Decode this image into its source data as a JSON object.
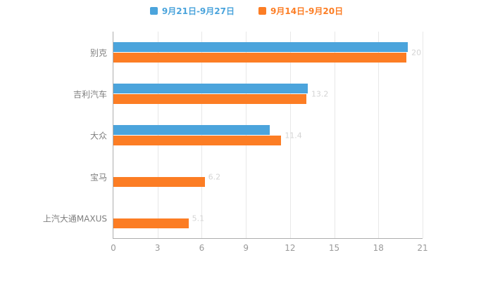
{
  "legend": {
    "items": [
      {
        "label": "9月21日-9月27日",
        "color": "#4BA4DC"
      },
      {
        "label": "9月14日-9月20日",
        "color": "#FC7D24"
      }
    ]
  },
  "chart_data": {
    "type": "bar",
    "orientation": "horizontal",
    "title": "",
    "xlabel": "",
    "ylabel": "",
    "categories": [
      "别克",
      "吉利汽车",
      "大众",
      "宝马",
      "上汽大通MAXUS"
    ],
    "series": [
      {
        "name": "9月21日-9月27日",
        "color": "#4BA4DC",
        "values": [
          20,
          13.2,
          10.6,
          0,
          0
        ]
      },
      {
        "name": "9月14日-9月20日",
        "color": "#FC7D24",
        "values": [
          19.9,
          13.1,
          11.4,
          6.2,
          5.1
        ]
      }
    ],
    "value_labels": [
      "20",
      "13.2",
      "11.4",
      "6.2",
      "5.1"
    ],
    "xlim": [
      0,
      21
    ],
    "x_ticks": [
      0,
      3,
      6,
      9,
      12,
      15,
      18,
      21
    ],
    "grid": true,
    "legend_position": "top"
  },
  "colors": {
    "background": "#ffffff",
    "axis_line": "#adadad",
    "grid_line": "#e8e8e8",
    "tick_text": "#999999",
    "category_text": "#7f7f7f",
    "value_label_text": "#d4d4d4"
  }
}
